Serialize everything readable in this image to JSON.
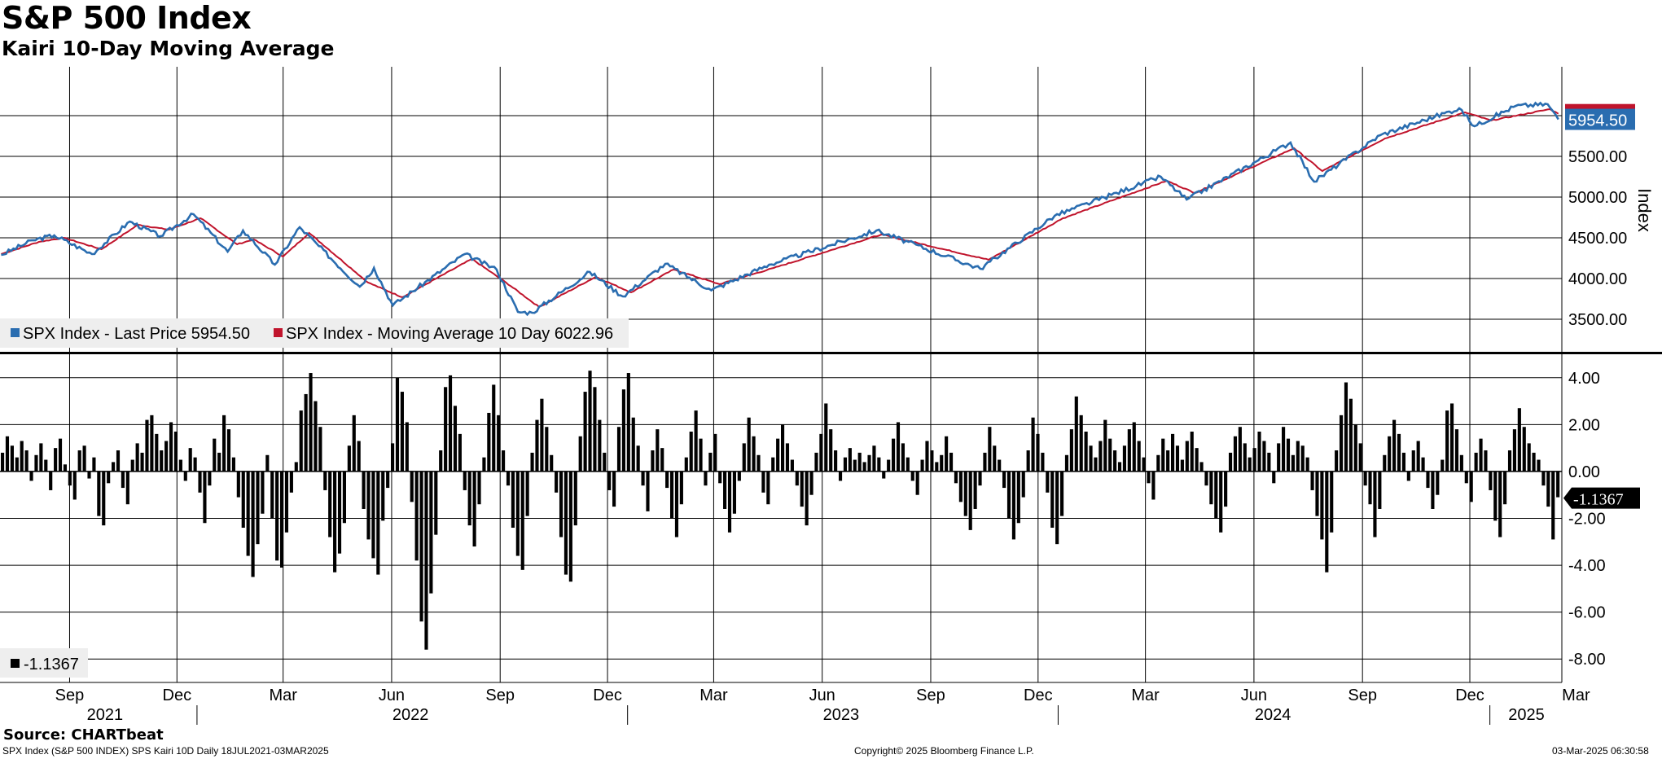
{
  "header": {
    "title": "S&P 500 Index",
    "subtitle": "Kairi 10-Day Moving Average"
  },
  "footer": {
    "source": "Source: CHARTbeat",
    "description": "SPX Index (S&P 500 INDEX) SPS Kairi 10D  Daily 18JUL2021-03MAR2025",
    "copyright": "Copyright© 2025 Bloomberg Finance L.P.",
    "timestamp": "03-Mar-2025 06:30:58"
  },
  "colors": {
    "last_price": "#2a6db0",
    "moving_average": "#c0142c",
    "kairi": "#000000",
    "grid": "#000000",
    "legend_bg": "#eeeeee"
  },
  "chart_data": [
    {
      "type": "line",
      "ylabel": "Index",
      "ylim": [
        3100,
        6600
      ],
      "yticks": [
        "3500.00",
        "4000.00",
        "4500.00",
        "5000.00",
        "5500.00"
      ],
      "last_value_label": "5954.50",
      "x_range": [
        "2021-07-18",
        "2025-03-03"
      ],
      "legend_placement": "bottom-left",
      "series": [
        {
          "name": "SPX Index - Last Price",
          "legend_value": "5954.50",
          "points": [
            [
              "2021-07-19",
              4290
            ],
            [
              "2021-08-15",
              4470
            ],
            [
              "2021-09-02",
              4530
            ],
            [
              "2021-10-04",
              4300
            ],
            [
              "2021-11-05",
              4700
            ],
            [
              "2021-12-01",
              4520
            ],
            [
              "2021-12-29",
              4790
            ],
            [
              "2022-01-27",
              4330
            ],
            [
              "2022-02-09",
              4590
            ],
            [
              "2022-03-08",
              4170
            ],
            [
              "2022-03-29",
              4630
            ],
            [
              "2022-05-19",
              3900
            ],
            [
              "2022-05-31",
              4130
            ],
            [
              "2022-06-16",
              3670
            ],
            [
              "2022-08-16",
              4300
            ],
            [
              "2022-09-12",
              4110
            ],
            [
              "2022-09-30",
              3590
            ],
            [
              "2022-10-12",
              3580
            ],
            [
              "2022-11-30",
              4080
            ],
            [
              "2022-12-28",
              3780
            ],
            [
              "2023-02-02",
              4180
            ],
            [
              "2023-03-13",
              3855
            ],
            [
              "2023-05-01",
              4170
            ],
            [
              "2023-07-31",
              4590
            ],
            [
              "2023-10-27",
              4120
            ],
            [
              "2023-12-29",
              4770
            ],
            [
              "2024-03-28",
              5250
            ],
            [
              "2024-04-19",
              4970
            ],
            [
              "2024-07-16",
              5670
            ],
            [
              "2024-08-05",
              5190
            ],
            [
              "2024-09-30",
              5760
            ],
            [
              "2024-12-06",
              6090
            ],
            [
              "2024-12-19",
              5870
            ],
            [
              "2025-01-23",
              6120
            ],
            [
              "2025-02-19",
              6140
            ],
            [
              "2025-02-28",
              5954.5
            ]
          ]
        },
        {
          "name": "SPX Index - Moving Average 10 Day",
          "legend_value": "6022.96",
          "points": [
            [
              "2021-07-19",
              4300
            ],
            [
              "2021-08-20",
              4450
            ],
            [
              "2021-09-10",
              4500
            ],
            [
              "2021-10-12",
              4360
            ],
            [
              "2021-11-12",
              4660
            ],
            [
              "2021-12-08",
              4600
            ],
            [
              "2022-01-04",
              4740
            ],
            [
              "2022-02-04",
              4420
            ],
            [
              "2022-02-18",
              4480
            ],
            [
              "2022-03-15",
              4270
            ],
            [
              "2022-04-06",
              4560
            ],
            [
              "2022-05-26",
              3950
            ],
            [
              "2022-06-24",
              3770
            ],
            [
              "2022-08-22",
              4240
            ],
            [
              "2022-09-20",
              3950
            ],
            [
              "2022-10-18",
              3650
            ],
            [
              "2022-12-05",
              4020
            ],
            [
              "2023-01-04",
              3830
            ],
            [
              "2023-02-09",
              4110
            ],
            [
              "2023-03-20",
              3930
            ],
            [
              "2023-05-05",
              4130
            ],
            [
              "2023-08-04",
              4540
            ],
            [
              "2023-11-03",
              4230
            ],
            [
              "2024-01-05",
              4740
            ],
            [
              "2024-04-02",
              5200
            ],
            [
              "2024-04-26",
              5050
            ],
            [
              "2024-07-19",
              5600
            ],
            [
              "2024-08-12",
              5320
            ],
            [
              "2024-10-04",
              5720
            ],
            [
              "2024-12-11",
              6040
            ],
            [
              "2025-01-02",
              5940
            ],
            [
              "2025-02-21",
              6080
            ],
            [
              "2025-02-28",
              6022.96
            ]
          ]
        }
      ]
    },
    {
      "type": "bar",
      "name": "",
      "ylim": [
        -9,
        5
      ],
      "yticks": [
        "4.00",
        "2.00",
        "0.00",
        "-2.00",
        "-4.00",
        "-6.00",
        "-8.00"
      ],
      "last_value_label": "-1.1367",
      "legend_value": "-1.1367",
      "legend_placement": "bottom-left",
      "values": [
        0.8,
        1.5,
        1.1,
        0.6,
        1.3,
        0.9,
        -0.4,
        0.7,
        1.2,
        0.5,
        -0.8,
        1.0,
        1.4,
        0.3,
        -0.6,
        -1.2,
        0.9,
        1.1,
        -0.3,
        0.6,
        -1.9,
        -2.3,
        -0.5,
        0.4,
        0.9,
        -0.7,
        -1.4,
        0.5,
        1.2,
        0.8,
        2.2,
        2.4,
        1.6,
        0.9,
        1.3,
        2.1,
        1.7,
        0.5,
        -0.4,
        1.0,
        0.6,
        -0.9,
        -2.2,
        -0.6,
        1.4,
        0.8,
        2.4,
        1.8,
        0.6,
        -1.1,
        -2.4,
        -3.6,
        -4.5,
        -3.1,
        -1.8,
        0.7,
        -2.0,
        -3.8,
        -4.1,
        -2.6,
        -0.9,
        0.4,
        2.6,
        3.3,
        4.2,
        3.0,
        1.9,
        -0.8,
        -2.8,
        -4.3,
        -3.5,
        -2.2,
        1.1,
        2.4,
        1.3,
        -1.6,
        -2.9,
        -3.7,
        -4.4,
        -2.1,
        -0.7,
        1.2,
        4.0,
        3.4,
        2.1,
        -1.3,
        -3.8,
        -6.4,
        -7.6,
        -5.2,
        -2.7,
        0.9,
        3.6,
        4.1,
        2.8,
        1.6,
        -0.8,
        -2.3,
        -3.2,
        -1.4,
        0.6,
        2.5,
        3.7,
        2.4,
        0.9,
        -0.6,
        -2.4,
        -3.6,
        -4.2,
        -1.9,
        0.8,
        2.2,
        3.1,
        1.9,
        0.7,
        -0.9,
        -2.8,
        -4.4,
        -4.7,
        -2.3,
        1.5,
        3.4,
        4.3,
        3.6,
        2.2,
        0.8,
        -0.8,
        -1.5,
        1.9,
        3.5,
        4.2,
        2.3,
        1.1,
        -0.6,
        -1.7,
        0.9,
        1.8,
        1.0,
        -0.7,
        -2.0,
        -2.8,
        -1.4,
        0.6,
        1.7,
        2.6,
        1.4,
        -0.6,
        0.8,
        1.6,
        -0.5,
        -1.6,
        -2.6,
        -1.8,
        -0.4,
        1.2,
        2.3,
        1.5,
        0.7,
        -0.9,
        -1.4,
        0.6,
        1.4,
        2.0,
        1.2,
        0.5,
        -0.6,
        -1.5,
        -2.3,
        -1.0,
        0.8,
        1.6,
        2.9,
        1.8,
        0.9,
        -0.4,
        0.6,
        1.0,
        0.5,
        0.8,
        0.4,
        0.7,
        1.1,
        0.6,
        -0.3,
        0.5,
        1.4,
        2.1,
        1.2,
        0.6,
        -0.4,
        -1.0,
        0.5,
        1.3,
        0.9,
        0.4,
        0.7,
        1.5,
        0.8,
        -0.5,
        -1.3,
        -1.9,
        -2.5,
        -1.6,
        -0.6,
        0.8,
        1.9,
        1.1,
        0.5,
        -0.7,
        -2.0,
        -2.9,
        -2.2,
        -1.1,
        0.9,
        2.3,
        1.6,
        0.8,
        -0.9,
        -2.4,
        -3.1,
        -1.9,
        0.7,
        1.8,
        3.2,
        2.4,
        1.7,
        1.1,
        0.6,
        1.3,
        2.2,
        1.4,
        0.9,
        0.4,
        1.1,
        1.8,
        2.1,
        1.3,
        0.6,
        -0.5,
        -1.2,
        0.7,
        1.4,
        0.9,
        1.6,
        1.1,
        0.5,
        1.3,
        1.7,
        1.0,
        0.4,
        -0.6,
        -1.4,
        -2.0,
        -2.6,
        -1.5,
        0.8,
        1.5,
        1.9,
        1.2,
        0.6,
        1.0,
        1.7,
        1.3,
        0.8,
        -0.5,
        1.2,
        1.9,
        1.4,
        0.7,
        1.3,
        1.1,
        0.6,
        -0.8,
        -1.9,
        -2.9,
        -4.3,
        -2.6,
        0.9,
        2.4,
        3.8,
        3.1,
        2.0,
        1.2,
        -0.6,
        -1.4,
        -2.8,
        -1.6,
        0.7,
        1.5,
        2.2,
        1.6,
        0.8,
        -0.4,
        0.9,
        1.3,
        0.6,
        -0.7,
        -1.6,
        -1.0,
        0.5,
        2.6,
        2.9,
        1.8,
        0.7,
        -0.5,
        -1.3,
        0.8,
        1.4,
        0.9,
        -0.8,
        -2.1,
        -2.8,
        -1.4,
        0.9,
        1.8,
        2.7,
        1.9,
        1.2,
        0.8,
        0.5,
        -0.6,
        -1.5,
        -2.9,
        -1.1
      ]
    }
  ],
  "x_axis": {
    "months": [
      {
        "label": "Sep",
        "date": "2021-09-15"
      },
      {
        "label": "Dec",
        "date": "2021-12-15"
      },
      {
        "label": "Mar",
        "date": "2022-03-15"
      },
      {
        "label": "Jun",
        "date": "2022-06-15"
      },
      {
        "label": "Sep",
        "date": "2022-09-15"
      },
      {
        "label": "Dec",
        "date": "2022-12-15"
      },
      {
        "label": "Mar",
        "date": "2023-03-15"
      },
      {
        "label": "Jun",
        "date": "2023-06-15"
      },
      {
        "label": "Sep",
        "date": "2023-09-15"
      },
      {
        "label": "Dec",
        "date": "2023-12-15"
      },
      {
        "label": "Mar",
        "date": "2024-03-15"
      },
      {
        "label": "Jun",
        "date": "2024-06-15"
      },
      {
        "label": "Sep",
        "date": "2024-09-15"
      },
      {
        "label": "Dec",
        "date": "2024-12-15"
      },
      {
        "label": "Mar",
        "date": "2025-03-15"
      }
    ],
    "years": [
      {
        "label": "2021",
        "date": "2021-10-15"
      },
      {
        "label": "2022",
        "date": "2022-07-01"
      },
      {
        "label": "2023",
        "date": "2023-07-01"
      },
      {
        "label": "2024",
        "date": "2024-07-01"
      },
      {
        "label": "2025",
        "date": "2025-02-01"
      }
    ]
  }
}
